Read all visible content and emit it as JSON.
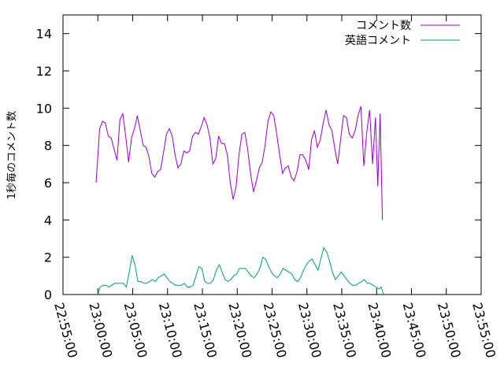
{
  "chart_data": {
    "type": "line",
    "title": "",
    "xlabel": "",
    "ylabel": "1秒毎のコメント数",
    "xlim": [
      "22:55:00",
      "23:55:00"
    ],
    "ylim": [
      0,
      15
    ],
    "x_ticks": [
      "22:55:00",
      "23:00:00",
      "23:05:00",
      "23:10:00",
      "23:15:00",
      "23:20:00",
      "23:25:00",
      "23:30:00",
      "23:35:00",
      "23:40:00",
      "23:45:00",
      "23:50:00",
      "23:55:00"
    ],
    "y_ticks": [
      "0",
      "2",
      "4",
      "6",
      "8",
      "10",
      "12",
      "14"
    ],
    "grid": false,
    "legend_position": "top-right",
    "series": [
      {
        "name": "コメント数",
        "color": "#9400d3",
        "points": [
          [
            "22:59:45",
            6.0
          ],
          [
            "23:00:15",
            8.9
          ],
          [
            "23:00:40",
            9.3
          ],
          [
            "23:01:05",
            9.2
          ],
          [
            "23:01:30",
            8.5
          ],
          [
            "23:01:55",
            8.4
          ],
          [
            "23:02:20",
            7.8
          ],
          [
            "23:02:45",
            7.2
          ],
          [
            "23:03:10",
            9.4
          ],
          [
            "23:03:35",
            9.7
          ],
          [
            "23:04:00",
            8.5
          ],
          [
            "23:04:25",
            7.1
          ],
          [
            "23:04:50",
            8.4
          ],
          [
            "23:05:15",
            8.9
          ],
          [
            "23:05:40",
            9.6
          ],
          [
            "23:06:05",
            8.8
          ],
          [
            "23:06:30",
            8.0
          ],
          [
            "23:06:55",
            7.9
          ],
          [
            "23:07:20",
            7.4
          ],
          [
            "23:07:45",
            6.5
          ],
          [
            "23:08:10",
            6.3
          ],
          [
            "23:08:35",
            6.6
          ],
          [
            "23:09:00",
            6.7
          ],
          [
            "23:09:25",
            7.6
          ],
          [
            "23:09:50",
            8.6
          ],
          [
            "23:10:15",
            8.9
          ],
          [
            "23:10:40",
            8.5
          ],
          [
            "23:11:05",
            7.5
          ],
          [
            "23:11:30",
            6.8
          ],
          [
            "23:11:55",
            7.0
          ],
          [
            "23:12:20",
            7.7
          ],
          [
            "23:12:45",
            7.6
          ],
          [
            "23:13:10",
            7.7
          ],
          [
            "23:13:35",
            8.5
          ],
          [
            "23:14:00",
            8.7
          ],
          [
            "23:14:25",
            8.6
          ],
          [
            "23:14:50",
            9.0
          ],
          [
            "23:15:15",
            9.5
          ],
          [
            "23:15:40",
            9.1
          ],
          [
            "23:16:05",
            8.4
          ],
          [
            "23:16:30",
            7.0
          ],
          [
            "23:16:55",
            7.3
          ],
          [
            "23:17:20",
            8.5
          ],
          [
            "23:17:45",
            8.1
          ],
          [
            "23:18:10",
            8.1
          ],
          [
            "23:18:35",
            7.5
          ],
          [
            "23:19:00",
            6.0
          ],
          [
            "23:19:25",
            5.1
          ],
          [
            "23:19:50",
            5.8
          ],
          [
            "23:20:15",
            7.5
          ],
          [
            "23:20:40",
            8.6
          ],
          [
            "23:21:05",
            8.7
          ],
          [
            "23:21:30",
            7.8
          ],
          [
            "23:21:55",
            6.5
          ],
          [
            "23:22:20",
            5.5
          ],
          [
            "23:22:45",
            6.1
          ],
          [
            "23:23:10",
            6.8
          ],
          [
            "23:23:35",
            7.1
          ],
          [
            "23:24:00",
            8.0
          ],
          [
            "23:24:25",
            9.3
          ],
          [
            "23:24:50",
            9.8
          ],
          [
            "23:25:15",
            9.6
          ],
          [
            "23:25:40",
            8.6
          ],
          [
            "23:26:05",
            7.5
          ],
          [
            "23:26:30",
            6.5
          ],
          [
            "23:26:55",
            6.8
          ],
          [
            "23:27:20",
            6.9
          ],
          [
            "23:27:45",
            6.3
          ],
          [
            "23:28:10",
            6.1
          ],
          [
            "23:28:35",
            6.6
          ],
          [
            "23:29:00",
            7.5
          ],
          [
            "23:29:25",
            7.5
          ],
          [
            "23:29:50",
            7.2
          ],
          [
            "23:30:15",
            6.7
          ],
          [
            "23:30:40",
            8.3
          ],
          [
            "23:31:05",
            8.8
          ],
          [
            "23:31:30",
            7.9
          ],
          [
            "23:31:55",
            8.3
          ],
          [
            "23:32:20",
            9.2
          ],
          [
            "23:32:45",
            9.9
          ],
          [
            "23:33:10",
            9.1
          ],
          [
            "23:33:35",
            8.8
          ],
          [
            "23:34:00",
            7.8
          ],
          [
            "23:34:25",
            7.0
          ],
          [
            "23:34:50",
            8.3
          ],
          [
            "23:35:15",
            9.6
          ],
          [
            "23:35:40",
            9.5
          ],
          [
            "23:36:05",
            8.6
          ],
          [
            "23:36:30",
            8.4
          ],
          [
            "23:36:55",
            8.8
          ],
          [
            "23:37:20",
            9.6
          ],
          [
            "23:37:45",
            10.1
          ],
          [
            "23:38:10",
            6.9
          ],
          [
            "23:38:35",
            8.7
          ],
          [
            "23:39:00",
            9.9
          ],
          [
            "23:39:25",
            7.0
          ],
          [
            "23:39:50",
            9.5
          ],
          [
            "23:40:10",
            5.8
          ],
          [
            "23:40:30",
            9.7
          ],
          [
            "23:40:50",
            4.0
          ]
        ]
      },
      {
        "name": "英語コメント",
        "color": "#009e73",
        "points": [
          [
            "23:00:00",
            0.0
          ],
          [
            "23:00:20",
            0.4
          ],
          [
            "23:00:45",
            0.5
          ],
          [
            "23:01:10",
            0.5
          ],
          [
            "23:01:35",
            0.4
          ],
          [
            "23:02:00",
            0.5
          ],
          [
            "23:02:25",
            0.6
          ],
          [
            "23:02:50",
            0.6
          ],
          [
            "23:03:15",
            0.6
          ],
          [
            "23:03:40",
            0.6
          ],
          [
            "23:04:05",
            0.4
          ],
          [
            "23:04:30",
            1.2
          ],
          [
            "23:04:55",
            2.1
          ],
          [
            "23:05:20",
            1.6
          ],
          [
            "23:05:45",
            0.7
          ],
          [
            "23:06:10",
            0.7
          ],
          [
            "23:06:35",
            0.6
          ],
          [
            "23:07:00",
            0.6
          ],
          [
            "23:07:25",
            0.7
          ],
          [
            "23:07:50",
            0.8
          ],
          [
            "23:08:15",
            0.7
          ],
          [
            "23:08:40",
            0.9
          ],
          [
            "23:09:05",
            1.0
          ],
          [
            "23:09:30",
            1.1
          ],
          [
            "23:09:55",
            0.9
          ],
          [
            "23:10:20",
            0.7
          ],
          [
            "23:10:45",
            0.6
          ],
          [
            "23:11:10",
            0.5
          ],
          [
            "23:11:35",
            0.5
          ],
          [
            "23:12:00",
            0.5
          ],
          [
            "23:12:25",
            0.6
          ],
          [
            "23:12:50",
            0.4
          ],
          [
            "23:13:15",
            0.4
          ],
          [
            "23:13:40",
            0.5
          ],
          [
            "23:14:05",
            1.0
          ],
          [
            "23:14:30",
            1.5
          ],
          [
            "23:14:55",
            1.4
          ],
          [
            "23:15:20",
            0.7
          ],
          [
            "23:15:45",
            0.6
          ],
          [
            "23:16:10",
            0.6
          ],
          [
            "23:16:35",
            0.8
          ],
          [
            "23:17:00",
            1.3
          ],
          [
            "23:17:25",
            1.6
          ],
          [
            "23:17:50",
            1.2
          ],
          [
            "23:18:15",
            0.8
          ],
          [
            "23:18:40",
            0.7
          ],
          [
            "23:19:05",
            0.8
          ],
          [
            "23:19:30",
            1.0
          ],
          [
            "23:19:55",
            1.1
          ],
          [
            "23:20:20",
            1.4
          ],
          [
            "23:20:45",
            1.4
          ],
          [
            "23:21:10",
            1.4
          ],
          [
            "23:21:35",
            1.2
          ],
          [
            "23:22:00",
            1.0
          ],
          [
            "23:22:25",
            0.9
          ],
          [
            "23:22:50",
            1.1
          ],
          [
            "23:23:15",
            1.4
          ],
          [
            "23:23:40",
            2.0
          ],
          [
            "23:24:05",
            1.9
          ],
          [
            "23:24:30",
            1.5
          ],
          [
            "23:24:55",
            1.2
          ],
          [
            "23:25:20",
            1.0
          ],
          [
            "23:25:45",
            0.9
          ],
          [
            "23:26:10",
            1.1
          ],
          [
            "23:26:35",
            1.4
          ],
          [
            "23:27:00",
            1.3
          ],
          [
            "23:27:25",
            1.2
          ],
          [
            "23:27:50",
            1.1
          ],
          [
            "23:28:15",
            0.8
          ],
          [
            "23:28:40",
            0.7
          ],
          [
            "23:29:05",
            0.9
          ],
          [
            "23:29:30",
            1.3
          ],
          [
            "23:29:55",
            1.6
          ],
          [
            "23:30:20",
            1.8
          ],
          [
            "23:30:45",
            1.9
          ],
          [
            "23:31:10",
            1.6
          ],
          [
            "23:31:35",
            1.3
          ],
          [
            "23:32:00",
            1.9
          ],
          [
            "23:32:25",
            2.5
          ],
          [
            "23:32:50",
            2.3
          ],
          [
            "23:33:15",
            1.8
          ],
          [
            "23:33:40",
            1.2
          ],
          [
            "23:34:05",
            0.8
          ],
          [
            "23:34:30",
            1.0
          ],
          [
            "23:34:55",
            1.2
          ],
          [
            "23:35:20",
            1.0
          ],
          [
            "23:35:45",
            0.8
          ],
          [
            "23:36:10",
            0.6
          ],
          [
            "23:36:35",
            0.5
          ],
          [
            "23:37:00",
            0.5
          ],
          [
            "23:37:25",
            0.6
          ],
          [
            "23:37:50",
            0.7
          ],
          [
            "23:38:15",
            0.8
          ],
          [
            "23:38:40",
            0.6
          ],
          [
            "23:39:05",
            0.6
          ],
          [
            "23:39:30",
            0.5
          ],
          [
            "23:39:55",
            0.4
          ],
          [
            "23:40:20",
            0.3
          ],
          [
            "23:40:40",
            0.4
          ],
          [
            "23:41:00",
            0.0
          ]
        ]
      }
    ]
  }
}
